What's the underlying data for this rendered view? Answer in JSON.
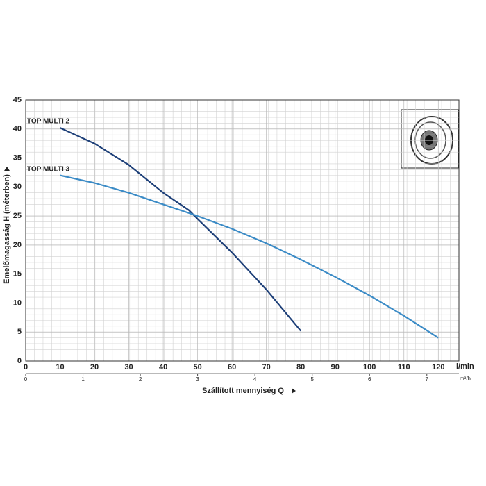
{
  "chart_data": {
    "type": "line",
    "y_label": "Emelőmagasság H (méterben)",
    "x_label": "Szállított mennyiség Q",
    "x_unit": "l/min",
    "x2_unit": "m³/h",
    "xlim": [
      0,
      126
    ],
    "xticks": [
      0,
      10,
      20,
      30,
      40,
      50,
      60,
      70,
      80,
      90,
      100,
      110,
      120
    ],
    "x2lim": [
      0,
      7.56
    ],
    "x2ticks": [
      0,
      1,
      2,
      3,
      4,
      5,
      6,
      7
    ],
    "ylim": [
      0,
      45
    ],
    "yticks": [
      0,
      5,
      10,
      15,
      20,
      25,
      30,
      35,
      40,
      45
    ],
    "grid": true,
    "series": [
      {
        "name": "TOP MULTI 2",
        "color": "#1d3f78",
        "x": [
          10,
          20,
          30,
          40,
          47.5,
          50,
          60,
          70,
          80
        ],
        "values": [
          40.2,
          37.5,
          33.8,
          29,
          26,
          24.5,
          18.7,
          12.3,
          5.2
        ]
      },
      {
        "name": "TOP MULTI 3",
        "color": "#3b8bc6",
        "x": [
          10,
          20,
          30,
          40,
          50,
          60,
          70,
          80,
          90,
          100,
          110,
          120
        ],
        "values": [
          32,
          30.7,
          29,
          27,
          25,
          22.8,
          20.3,
          17.5,
          14.5,
          11.3,
          7.8,
          4
        ]
      }
    ]
  }
}
